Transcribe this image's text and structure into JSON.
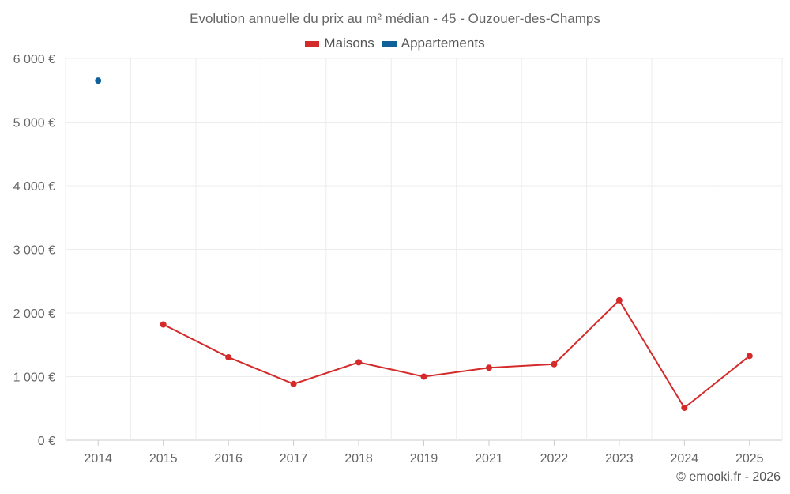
{
  "chart_data": {
    "type": "line",
    "title": "Evolution annuelle du prix au m² médian - 45 - Ouzouer-des-Champs",
    "categories": [
      "2014",
      "2015",
      "2016",
      "2017",
      "2018",
      "2019",
      "2021",
      "2022",
      "2023",
      "2024",
      "2025"
    ],
    "series": [
      {
        "name": "Maisons",
        "color": "#d42a2a",
        "values": [
          null,
          1820,
          1305,
          885,
          1225,
          1000,
          1140,
          1195,
          2200,
          510,
          1325
        ]
      },
      {
        "name": "Appartements",
        "color": "#0e6199",
        "values": [
          5650,
          null,
          null,
          null,
          null,
          null,
          null,
          null,
          null,
          null,
          null
        ]
      }
    ],
    "yticks": [
      0,
      1000,
      2000,
      3000,
      4000,
      5000,
      6000
    ],
    "ytick_labels": [
      "0 €",
      "1 000 €",
      "2 000 €",
      "3 000 €",
      "4 000 €",
      "5 000 €",
      "6 000 €"
    ],
    "ylim": [
      0,
      6000
    ],
    "xlabel": "",
    "ylabel": "",
    "grid": true,
    "legend_position": "top-center"
  },
  "credit": "© emooki.fr - 2026"
}
